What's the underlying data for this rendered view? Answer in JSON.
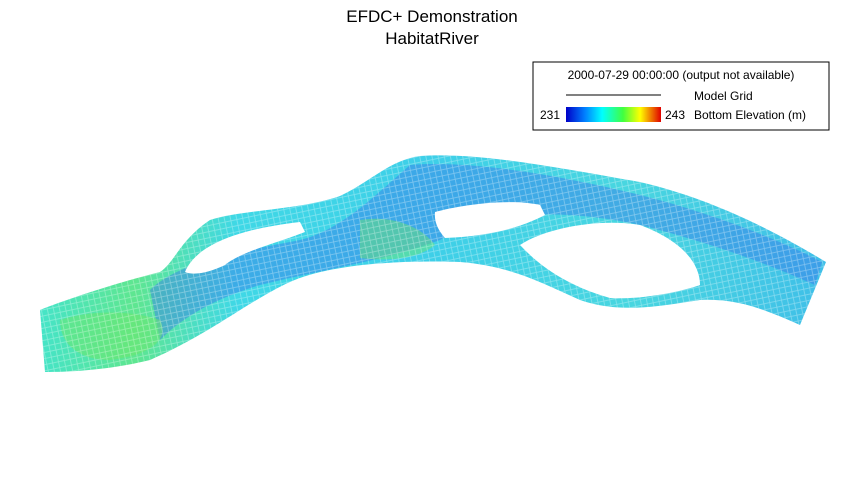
{
  "header": {
    "title": "EFDC+ Demonstration",
    "subtitle": "HabitatRiver"
  },
  "legend": {
    "timestamp": "2000-07-29 00:00:00 (output not available)",
    "grid_label": "Model Grid",
    "colorbar": {
      "min": 231,
      "max": 243,
      "label": "Bottom Elevation (m)"
    }
  }
}
